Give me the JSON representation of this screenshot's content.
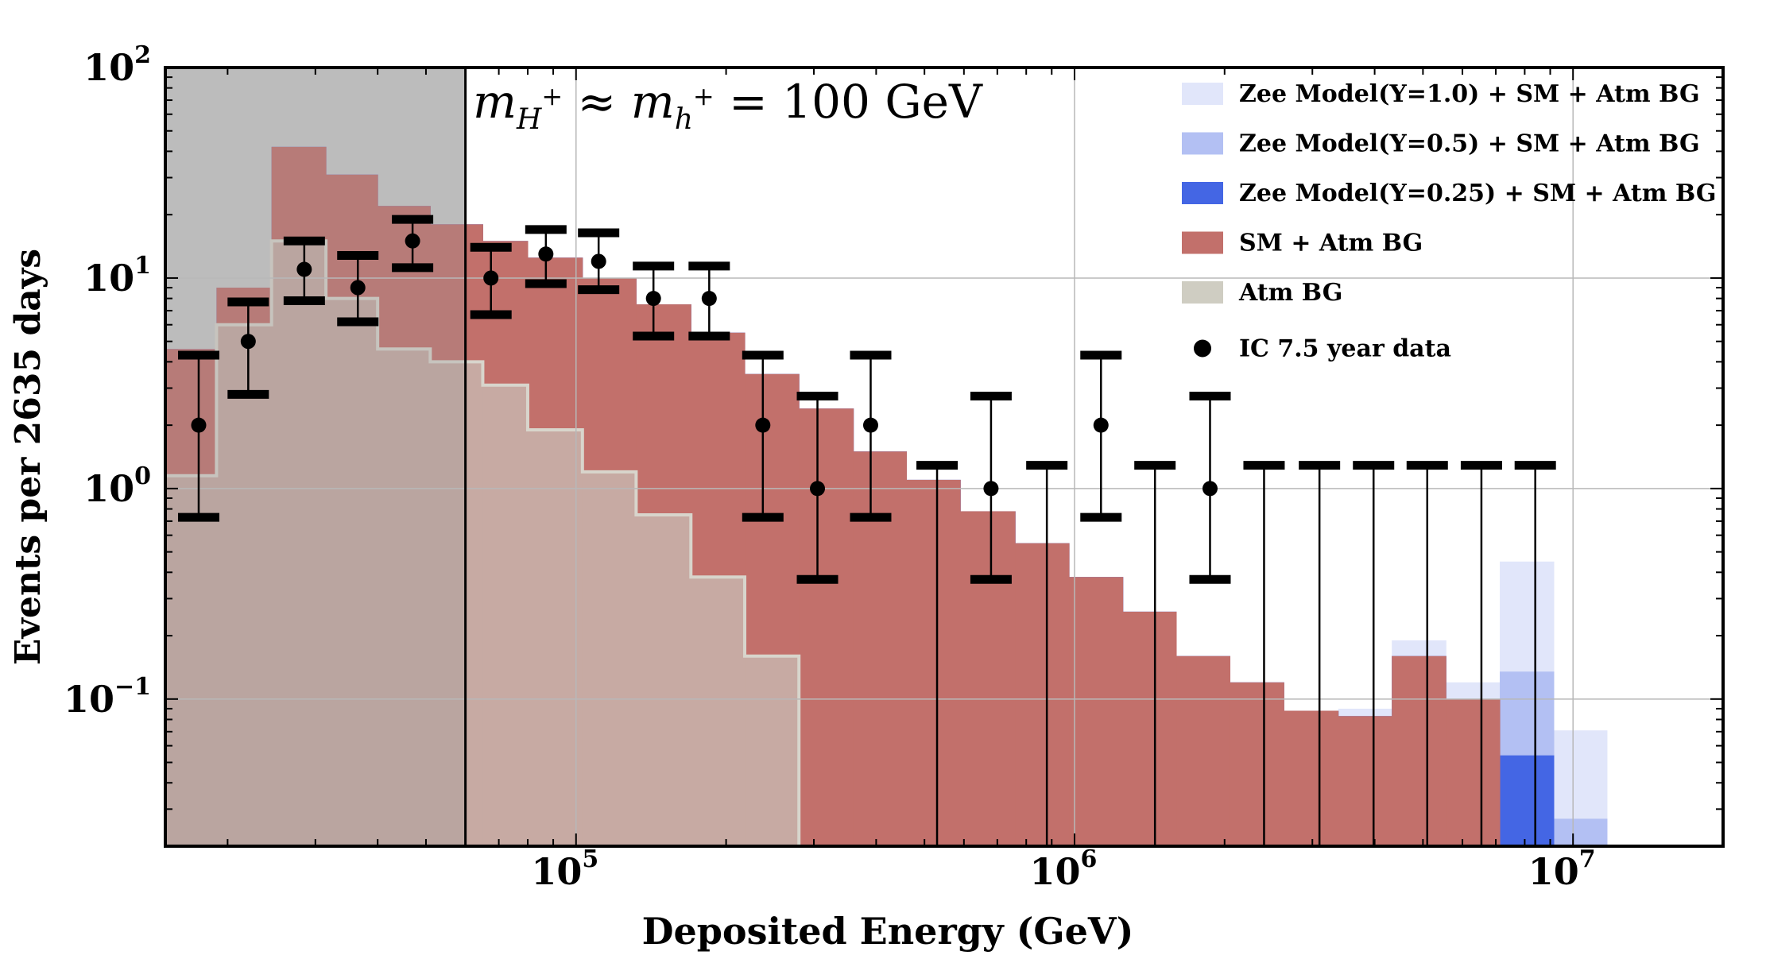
{
  "chart_data": {
    "type": "histogram",
    "xscale": "log",
    "yscale": "log",
    "xlim": [
      15000,
      20000000
    ],
    "ylim": [
      0.02,
      100
    ],
    "xlabel": "Deposited Energy (GeV)",
    "ylabel": "Events per 2635 days",
    "x_ticks": [
      {
        "value": 100000,
        "base": "10",
        "exp": "5"
      },
      {
        "value": 1000000,
        "base": "10",
        "exp": "6"
      },
      {
        "value": 10000000,
        "base": "10",
        "exp": "7"
      }
    ],
    "y_ticks": [
      {
        "value": 100,
        "base": "10",
        "exp": "2"
      },
      {
        "value": 10,
        "base": "10",
        "exp": "1"
      },
      {
        "value": 1,
        "base": "10",
        "exp": "0"
      },
      {
        "value": 0.1,
        "base": "10",
        "exp": "−1"
      }
    ],
    "annotation": {
      "lhs": "m",
      "lhs_sub": "H",
      "lhs_sup": "+",
      "approx": " ≈ ",
      "rhs": "m",
      "rhs_sub": "h",
      "rhs_sup": "+",
      "value": " = 100 GeV"
    },
    "shaded_region": {
      "x_min": 15000,
      "x_max": 60000,
      "color": "#c9c9c9"
    },
    "bin_edges": [
      15000,
      19000,
      24500,
      31500,
      40000,
      51000,
      60000,
      65000,
      80000,
      103000,
      132000,
      170000,
      218000,
      280000,
      360000,
      460000,
      590000,
      760000,
      975000,
      1250000,
      1600000,
      2050000,
      2630000,
      3380000,
      4330000,
      5560000,
      7130000,
      9150000,
      11700000,
      15000000
    ],
    "series": [
      {
        "name": "Zee Model(Y=1.0) + SM + Atm BG",
        "color": "#e1e6fa",
        "values": [
          4.6,
          9.0,
          42.0,
          31.0,
          22.0,
          18.0,
          18.0,
          15.0,
          12.5,
          10.0,
          7.5,
          5.5,
          3.5,
          2.4,
          1.5,
          1.1,
          0.78,
          0.55,
          0.38,
          0.26,
          0.16,
          0.12,
          0.088,
          0.09,
          0.19,
          0.12,
          0.45,
          0.071,
          0
        ]
      },
      {
        "name": "Zee Model(Y=0.5) + SM + Atm BG",
        "color": "#b3c0f3",
        "values": [
          4.6,
          9.0,
          42.0,
          31.0,
          22.0,
          18.0,
          18.0,
          15.0,
          12.5,
          10.0,
          7.5,
          5.5,
          3.5,
          2.4,
          1.5,
          1.1,
          0.78,
          0.55,
          0.38,
          0.26,
          0.16,
          0.12,
          0.088,
          0.083,
          0.16,
          0.1,
          0.135,
          0.027,
          0
        ]
      },
      {
        "name": "Zee Model(Y=0.25) + SM + Atm BG",
        "color": "#4466e4",
        "values": [
          4.6,
          9.0,
          42.0,
          31.0,
          22.0,
          18.0,
          18.0,
          15.0,
          12.5,
          10.0,
          7.5,
          5.5,
          3.5,
          2.4,
          1.5,
          1.1,
          0.78,
          0.55,
          0.38,
          0.26,
          0.16,
          0.12,
          0.088,
          0.083,
          0.16,
          0.1,
          0.054,
          0.0,
          0
        ]
      },
      {
        "name": "SM + Atm BG",
        "color": "#c2706b",
        "values": [
          4.6,
          9.0,
          42.0,
          31.0,
          22.0,
          18.0,
          18.0,
          15.0,
          12.5,
          10.0,
          7.5,
          5.5,
          3.5,
          2.4,
          1.5,
          1.1,
          0.78,
          0.55,
          0.38,
          0.26,
          0.16,
          0.12,
          0.088,
          0.083,
          0.16,
          0.1,
          0.0,
          0.0,
          0
        ]
      },
      {
        "name": "Atm BG",
        "color": "#c7aaa3",
        "values": [
          1.15,
          6.0,
          15.0,
          8.0,
          4.6,
          4.0,
          4.0,
          3.1,
          1.9,
          1.2,
          0.75,
          0.38,
          0.16,
          0,
          0,
          0,
          0,
          0,
          0,
          0,
          0,
          0,
          0,
          0,
          0,
          0,
          0,
          0,
          0
        ]
      }
    ],
    "data_points": {
      "name": "IC 7.5 year data",
      "x": [
        17500,
        22000,
        28500,
        36500,
        47000,
        67500,
        87000,
        111000,
        143000,
        185000,
        237000,
        305000,
        390000,
        530000,
        680000,
        880000,
        1130000,
        1450000,
        1870000,
        2400000,
        3100000,
        3980000,
        5100000,
        6550000,
        8400000
      ],
      "y": [
        2,
        5,
        11,
        9,
        15,
        10,
        13,
        12,
        8,
        8,
        2,
        1,
        2,
        0,
        1,
        0,
        2,
        0,
        1,
        0,
        0,
        0,
        0,
        0,
        0
      ],
      "y_low": [
        0.73,
        2.8,
        7.8,
        6.2,
        11.2,
        6.7,
        9.4,
        8.8,
        5.3,
        5.3,
        0.73,
        0.37,
        0.73,
        0.02,
        0.37,
        0.02,
        0.73,
        0.02,
        0.37,
        0.02,
        0.02,
        0.02,
        0.02,
        0.02,
        0.02
      ],
      "y_high": [
        4.3,
        7.7,
        15.0,
        12.8,
        19.0,
        14.0,
        17.0,
        16.4,
        11.4,
        11.4,
        4.3,
        2.75,
        4.3,
        1.29,
        2.75,
        1.29,
        4.3,
        1.29,
        2.75,
        1.29,
        1.29,
        1.29,
        1.29,
        1.29,
        1.29
      ]
    },
    "legend": {
      "position": "top-right",
      "entries": [
        {
          "label": "Zee Model(Y=1.0) + SM + Atm BG",
          "kind": "box",
          "color": "#e1e6fa"
        },
        {
          "label": "Zee Model(Y=0.5) + SM + Atm BG",
          "kind": "box",
          "color": "#b3c0f3"
        },
        {
          "label": "Zee Model(Y=0.25) + SM + Atm BG",
          "kind": "box",
          "color": "#4466e4"
        },
        {
          "label": "SM + Atm BG",
          "kind": "box",
          "color": "#c2706b"
        },
        {
          "label": "Atm BG",
          "kind": "box",
          "color": "#cfcdc2"
        },
        {
          "label": "IC 7.5 year data",
          "kind": "dot",
          "color": "#000000"
        }
      ]
    },
    "grid": true
  }
}
